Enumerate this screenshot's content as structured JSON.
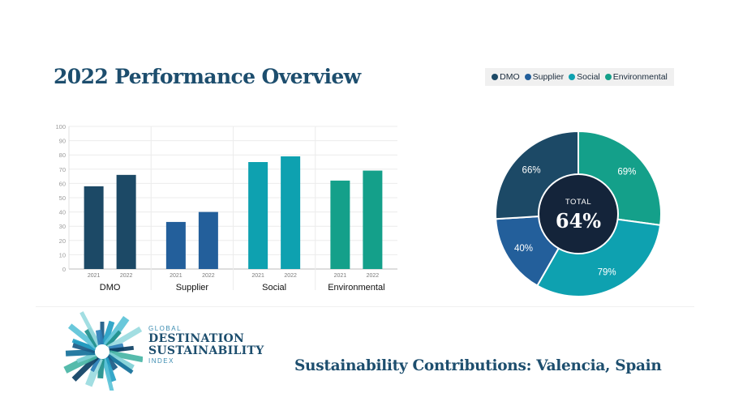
{
  "header": {
    "title": "2022 Performance Overview"
  },
  "legend": [
    {
      "label": "DMO",
      "color": "#1c4966"
    },
    {
      "label": "Supplier",
      "color": "#235f9b"
    },
    {
      "label": "Social",
      "color": "#0ea1b0"
    },
    {
      "label": "Environmental",
      "color": "#14a08a"
    }
  ],
  "chart_data": [
    {
      "type": "bar",
      "groups": [
        "DMO",
        "Supplier",
        "Social",
        "Environmental"
      ],
      "categories": [
        "2021",
        "2022"
      ],
      "series": [
        {
          "group": "DMO",
          "color": "#1c4966",
          "values": [
            58,
            66
          ]
        },
        {
          "group": "Supplier",
          "color": "#235f9b",
          "values": [
            33,
            40
          ]
        },
        {
          "group": "Social",
          "color": "#0ea1b0",
          "values": [
            75,
            79
          ]
        },
        {
          "group": "Environmental",
          "color": "#14a08a",
          "values": [
            62,
            69
          ]
        }
      ],
      "ylim": [
        0,
        100
      ],
      "yticks": [
        0,
        10,
        20,
        30,
        40,
        50,
        60,
        70,
        80,
        90,
        100
      ],
      "grid": true
    },
    {
      "type": "pie",
      "variant": "donut",
      "center_label": "TOTAL",
      "center_value": "64%",
      "slices": [
        {
          "label": "Environmental",
          "value": 69,
          "display": "69%",
          "color": "#14a08a"
        },
        {
          "label": "Social",
          "value": 79,
          "display": "79%",
          "color": "#0ea1b0"
        },
        {
          "label": "Supplier",
          "value": 40,
          "display": "40%",
          "color": "#235f9b"
        },
        {
          "label": "DMO",
          "value": 66,
          "display": "66%",
          "color": "#1c4966"
        }
      ],
      "center_color": "#14243a"
    }
  ],
  "logo": {
    "line1": "GLOBAL",
    "line2": "DESTINATION",
    "line3": "SUSTAINABILITY",
    "line4": "INDEX"
  },
  "footer": {
    "caption": "Sustainability Contributions:  Valencia, Spain"
  }
}
